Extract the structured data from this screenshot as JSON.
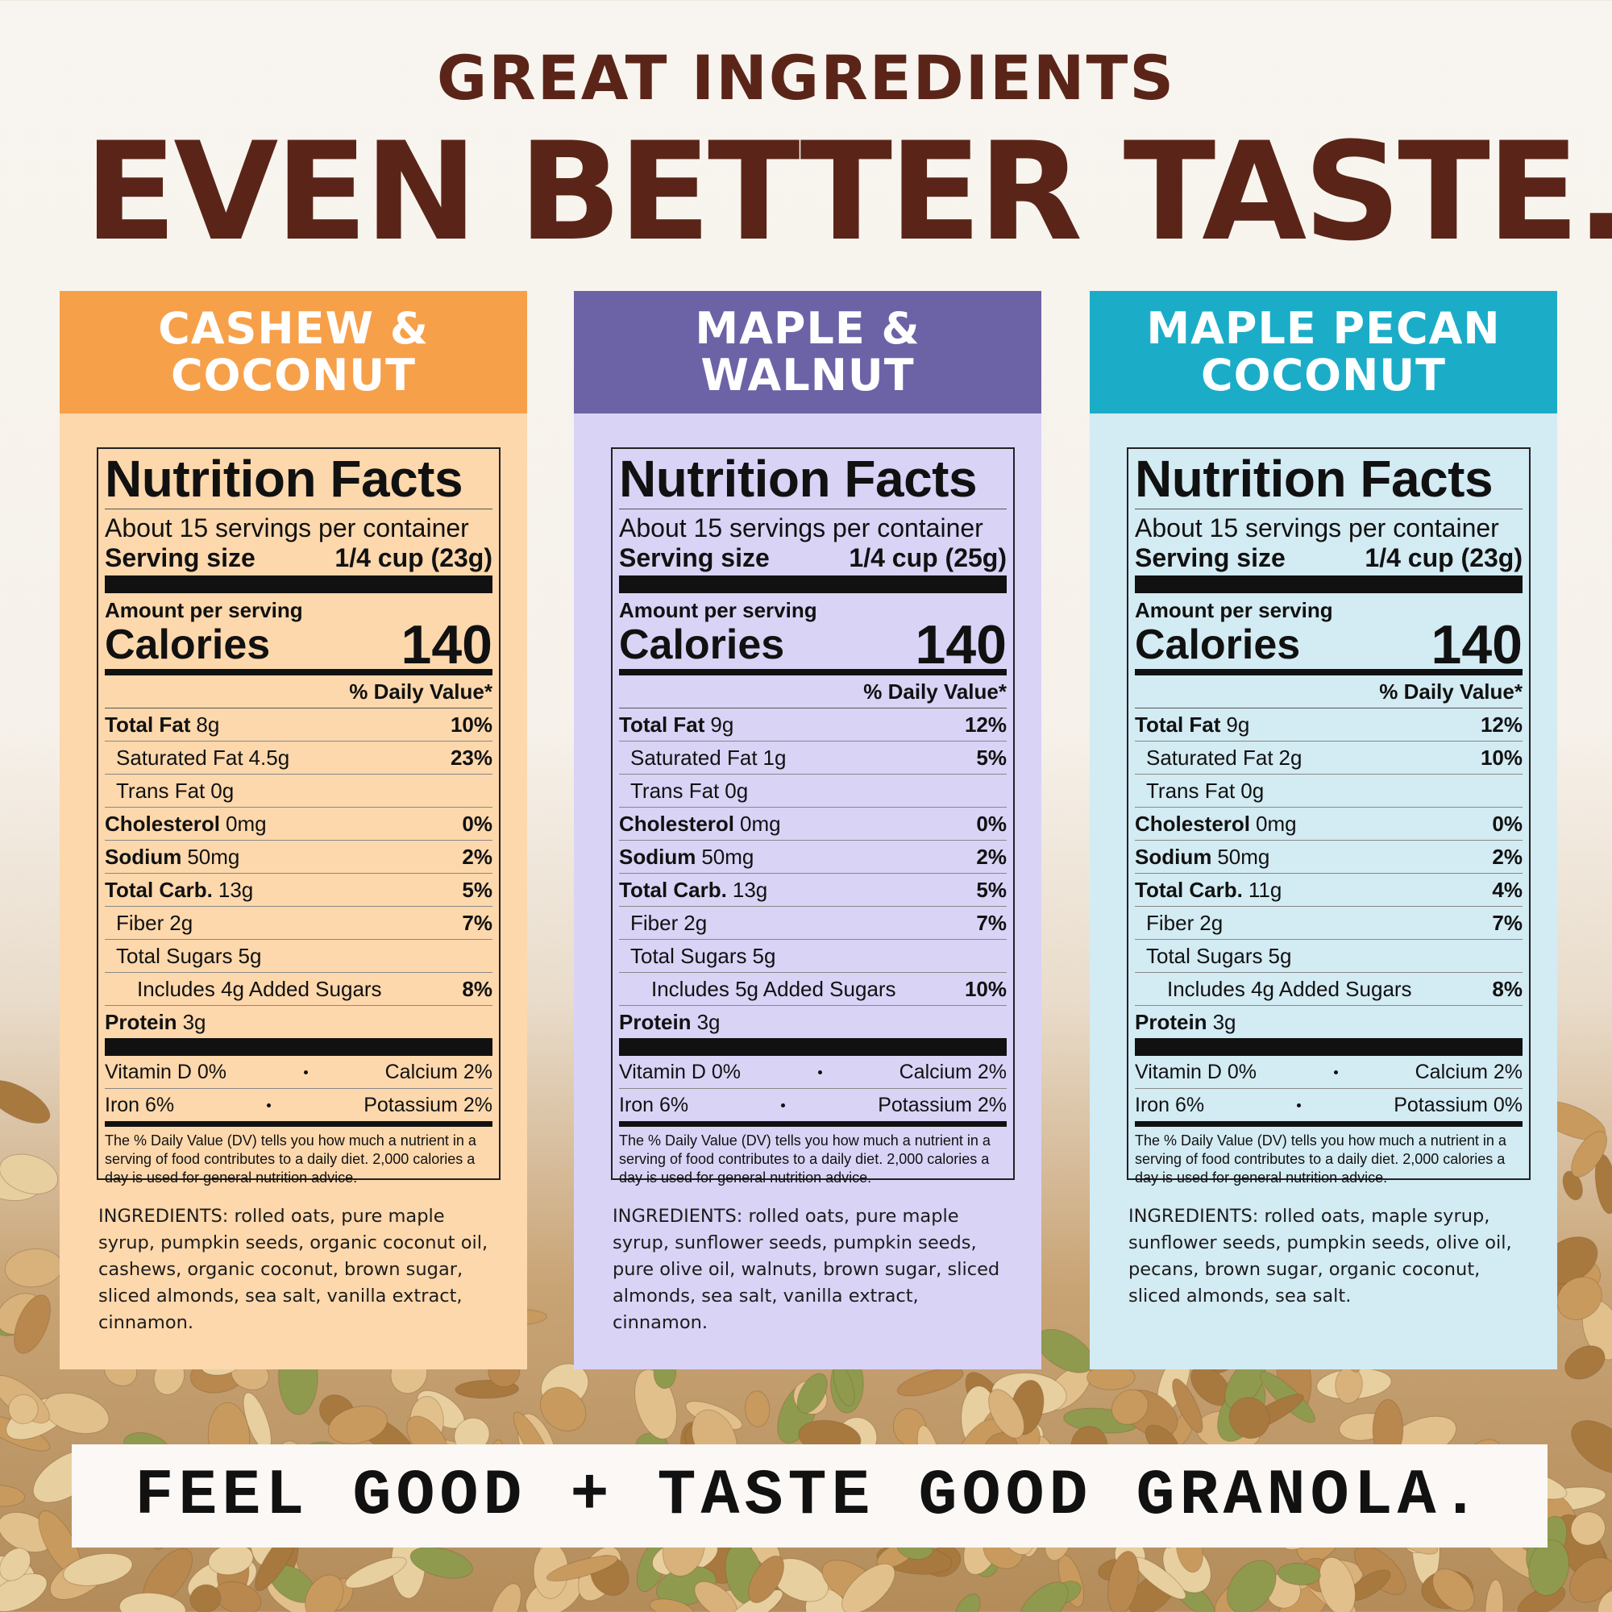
{
  "header": {
    "subtitle": "GREAT INGREDIENTS",
    "title": "EVEN BETTER TASTE."
  },
  "panels": [
    {
      "name_lines": [
        "CASHEW &",
        "COCONUT"
      ],
      "label": {
        "title": "Nutrition Facts",
        "servings": "About 15 servings per container",
        "serving_size_label": "Serving size",
        "serving_size": "1/4 cup (23g)",
        "amount_per_serving": "Amount per serving",
        "calories_label": "Calories",
        "calories": 140,
        "daily_value_header": "% Daily Value*",
        "rows": [
          {
            "name": "Total Fat",
            "amount": "8g",
            "dv": "10%"
          },
          {
            "name": "Saturated Fat",
            "amount": "4.5g",
            "dv": "23%"
          },
          {
            "name": "Trans Fat",
            "amount": "0g"
          },
          {
            "name": "Cholesterol",
            "amount": "0mg",
            "dv": "0%"
          },
          {
            "name": "Sodium",
            "amount": "50mg",
            "dv": "2%"
          },
          {
            "name": "Total Carb.",
            "amount": "13g",
            "dv": "5%"
          },
          {
            "name": "Fiber",
            "amount": "2g",
            "dv": "7%"
          },
          {
            "name": "Total Sugars",
            "amount": "5g"
          },
          {
            "name": "Includes 4g Added Sugars",
            "dv": "8%"
          },
          {
            "name": "Protein",
            "amount": "3g"
          }
        ],
        "vitamins": [
          [
            "Vitamin D 0%",
            "Calcium 2%"
          ],
          [
            "Iron 6%",
            "Potassium 2%"
          ]
        ],
        "footnote": "The % Daily Value (DV) tells you how much a nutrient in a serving of food contributes to a daily diet. 2,000 calories a day is used for general nutrition advice."
      },
      "ingredients": "INGREDIENTS: rolled oats, pure maple syrup, pumpkin seeds, organic coconut oil, cashews, organic coconut, brown sugar, sliced almonds, sea salt, vanilla extract, cinnamon."
    },
    {
      "name_lines": [
        "MAPLE &",
        "WALNUT"
      ],
      "label": {
        "title": "Nutrition Facts",
        "servings": "About 15 servings per container",
        "serving_size_label": "Serving size",
        "serving_size": "1/4 cup (25g)",
        "amount_per_serving": "Amount per serving",
        "calories_label": "Calories",
        "calories": 140,
        "daily_value_header": "% Daily Value*",
        "rows": [
          {
            "name": "Total Fat",
            "amount": "9g",
            "dv": "12%"
          },
          {
            "name": "Saturated Fat",
            "amount": "1g",
            "dv": "5%"
          },
          {
            "name": "Trans Fat",
            "amount": "0g"
          },
          {
            "name": "Cholesterol",
            "amount": "0mg",
            "dv": "0%"
          },
          {
            "name": "Sodium",
            "amount": "50mg",
            "dv": "2%"
          },
          {
            "name": "Total Carb.",
            "amount": "13g",
            "dv": "5%"
          },
          {
            "name": "Fiber",
            "amount": "2g",
            "dv": "7%"
          },
          {
            "name": "Total Sugars",
            "amount": "5g"
          },
          {
            "name": "Includes 5g Added Sugars",
            "dv": "10%"
          },
          {
            "name": "Protein",
            "amount": "3g"
          }
        ],
        "vitamins": [
          [
            "Vitamin D 0%",
            "Calcium 2%"
          ],
          [
            "Iron 6%",
            "Potassium 2%"
          ]
        ],
        "footnote": "The % Daily Value (DV) tells you how much a nutrient in a serving of food contributes to a daily diet. 2,000 calories a day is used for general nutrition advice."
      },
      "ingredients": "INGREDIENTS: rolled oats, pure maple syrup, sunflower seeds, pumpkin seeds, pure olive oil, walnuts, brown sugar, sliced almonds, sea salt, vanilla extract, cinnamon."
    },
    {
      "name_lines": [
        "MAPLE PECAN",
        "COCONUT"
      ],
      "label": {
        "title": "Nutrition Facts",
        "servings": "About 15 servings per container",
        "serving_size_label": "Serving size",
        "serving_size": "1/4 cup (23g)",
        "amount_per_serving": "Amount per serving",
        "calories_label": "Calories",
        "calories": 140,
        "daily_value_header": "% Daily Value*",
        "rows": [
          {
            "name": "Total Fat",
            "amount": "9g",
            "dv": "12%"
          },
          {
            "name": "Saturated Fat",
            "amount": "2g",
            "dv": "10%"
          },
          {
            "name": "Trans Fat",
            "amount": "0g"
          },
          {
            "name": "Cholesterol",
            "amount": "0mg",
            "dv": "0%"
          },
          {
            "name": "Sodium",
            "amount": "50mg",
            "dv": "2%"
          },
          {
            "name": "Total Carb.",
            "amount": "11g",
            "dv": "4%"
          },
          {
            "name": "Fiber",
            "amount": "2g",
            "dv": "7%"
          },
          {
            "name": "Total Sugars",
            "amount": "5g"
          },
          {
            "name": "Includes 4g Added Sugars",
            "dv": "8%"
          },
          {
            "name": "Protein",
            "amount": "3g"
          }
        ],
        "vitamins": [
          [
            "Vitamin D 0%",
            "Calcium 2%"
          ],
          [
            "Iron 6%",
            "Potassium 0%"
          ]
        ],
        "footnote": "The % Daily Value (DV) tells you how much a nutrient in a serving of food contributes to a daily diet. 2,000 calories a day is used for general nutrition advice."
      },
      "ingredients": "INGREDIENTS: rolled oats, maple syrup, sunflower seeds, pumpkin seeds, olive oil, pecans, brown sugar, organic coconut, sliced almonds, sea salt."
    }
  ],
  "footer": {
    "tagline": "FEEL GOOD + TASTE GOOD GRANOLA."
  }
}
